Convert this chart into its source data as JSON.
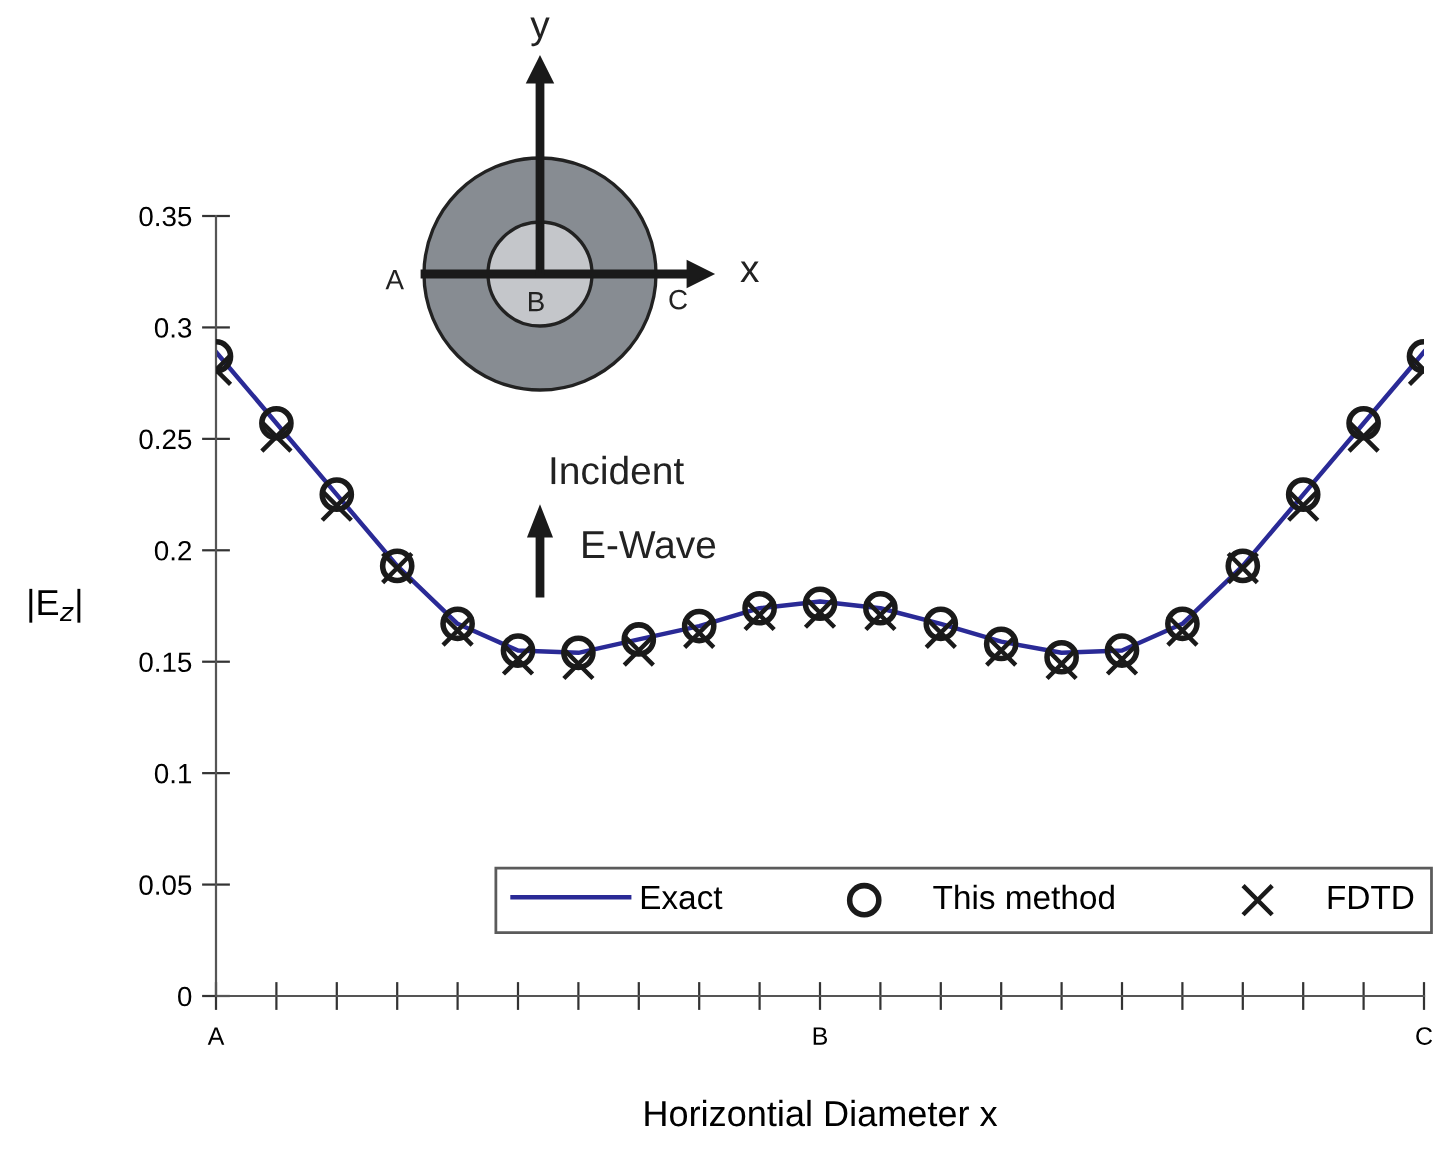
{
  "chart_data": {
    "type": "line",
    "xlabel": "Horizontial Diameter x",
    "ylabel": "|E$_{z}$|",
    "categories": [
      "A",
      null,
      null,
      null,
      null,
      null,
      null,
      null,
      null,
      null,
      "B",
      null,
      null,
      null,
      null,
      null,
      null,
      null,
      null,
      null,
      "C"
    ],
    "series": [
      {
        "name": "Exact",
        "color": "#2a2a96",
        "marker": "none",
        "line_style": "solid",
        "values": [
          0.289,
          0.257,
          0.225,
          0.193,
          0.167,
          0.155,
          0.154,
          0.16,
          0.166,
          0.174,
          0.177,
          0.174,
          0.167,
          0.159,
          0.154,
          0.155,
          0.167,
          0.193,
          0.225,
          0.257,
          0.289
        ]
      },
      {
        "name": "This method",
        "type": "scatter",
        "color": "#1a1a1a",
        "marker": "circle",
        "values": [
          0.287,
          0.257,
          0.225,
          0.193,
          0.167,
          0.155,
          0.154,
          0.16,
          0.166,
          0.174,
          0.176,
          0.174,
          0.167,
          0.158,
          0.152,
          0.155,
          0.167,
          0.193,
          0.225,
          0.257,
          0.287
        ]
      },
      {
        "name": "FDTD",
        "type": "scatter",
        "color": "#1a1a1a",
        "marker": "cross",
        "values": [
          0.281,
          0.251,
          0.22,
          0.192,
          0.164,
          0.151,
          0.149,
          0.155,
          0.163,
          0.171,
          0.172,
          0.171,
          0.163,
          0.155,
          0.149,
          0.151,
          0.164,
          0.192,
          0.22,
          0.251,
          0.281
        ]
      }
    ],
    "ylim": [
      0,
      0.35
    ],
    "yticks": [
      0,
      0.05,
      0.1,
      0.15,
      0.2,
      0.25,
      0.3,
      0.35
    ],
    "grid": false,
    "legend": "bottom right",
    "annotations": [
      "y",
      "x",
      "A",
      "B",
      "C",
      "Incident",
      "E-Wave"
    ]
  }
}
